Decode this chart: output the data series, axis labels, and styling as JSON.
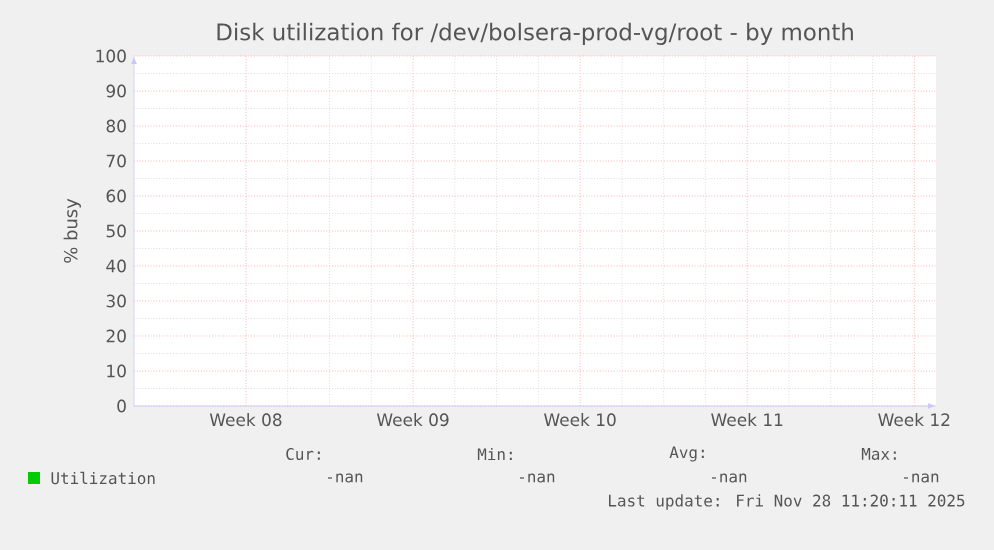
{
  "chart_data": {
    "type": "line",
    "title": "Disk utilization for /dev/bolsera-prod-vg/root - by month",
    "ylabel": "% busy",
    "categories": [
      "Week 08",
      "Week 09",
      "Week 10",
      "Week 11",
      "Week 12"
    ],
    "series": [
      {
        "name": "Utilization",
        "color": "#00cc00",
        "values": [
          null,
          null,
          null,
          null,
          null
        ]
      }
    ],
    "ylim": [
      0,
      100
    ],
    "yticks": [
      0,
      10,
      20,
      30,
      40,
      50,
      60,
      70,
      80,
      90,
      100
    ],
    "grid": true,
    "legend": "bottom left",
    "annotations": [
      "Cur:",
      "-nan",
      "Min:",
      "-nan",
      "Avg:",
      "-nan",
      "Max:",
      "-nan",
      "Last update: Fri Nov 28 11:20:11 2025"
    ]
  }
}
